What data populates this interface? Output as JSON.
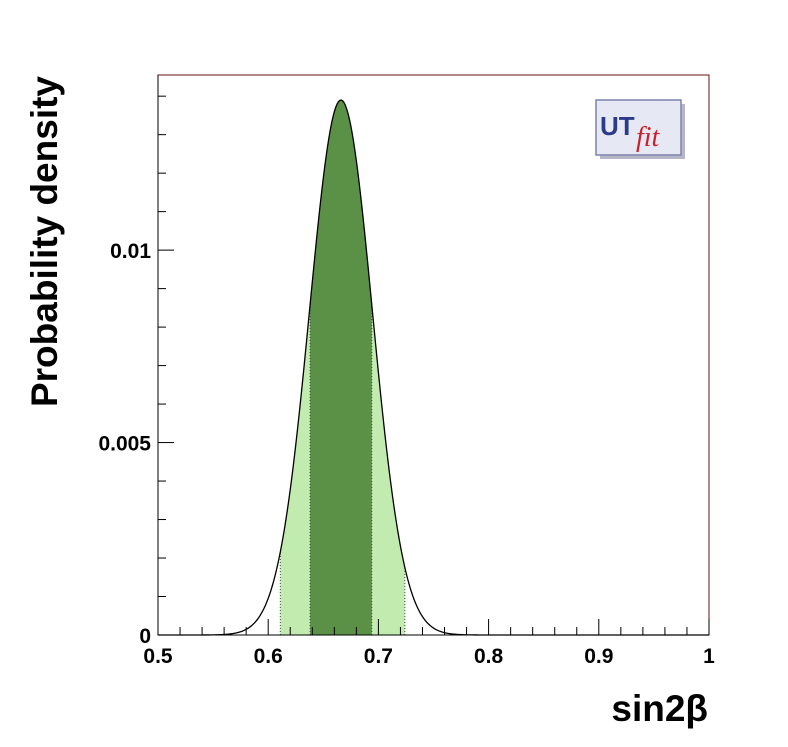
{
  "chart_data": {
    "type": "area",
    "xlabel": "sin2β",
    "ylabel": "Probability density",
    "xlim": [
      0.5,
      1.0
    ],
    "ylim": [
      0,
      0.01455
    ],
    "x_ticks": [
      {
        "value": 0.5,
        "label": "0.5"
      },
      {
        "value": 0.6,
        "label": "0.6"
      },
      {
        "value": 0.7,
        "label": "0.7"
      },
      {
        "value": 0.8,
        "label": "0.8"
      },
      {
        "value": 0.9,
        "label": "0.9"
      },
      {
        "value": 1.0,
        "label": "1"
      }
    ],
    "y_ticks": [
      {
        "value": 0,
        "label": "0"
      },
      {
        "value": 0.005,
        "label": "0.005"
      },
      {
        "value": 0.01,
        "label": "0.01"
      }
    ],
    "distribution": {
      "peak_x": 0.666,
      "peak_y": 0.0139,
      "sigma": 0.0285
    },
    "bands": [
      {
        "name": "95% region",
        "x_range": [
          0.611,
          0.724
        ],
        "color": "#c1ebaf"
      },
      {
        "name": "68% region",
        "x_range": [
          0.638,
          0.694
        ],
        "color": "#5a9147"
      }
    ],
    "grid": false
  },
  "logo": {
    "ut": "UT",
    "fit": "fit"
  }
}
